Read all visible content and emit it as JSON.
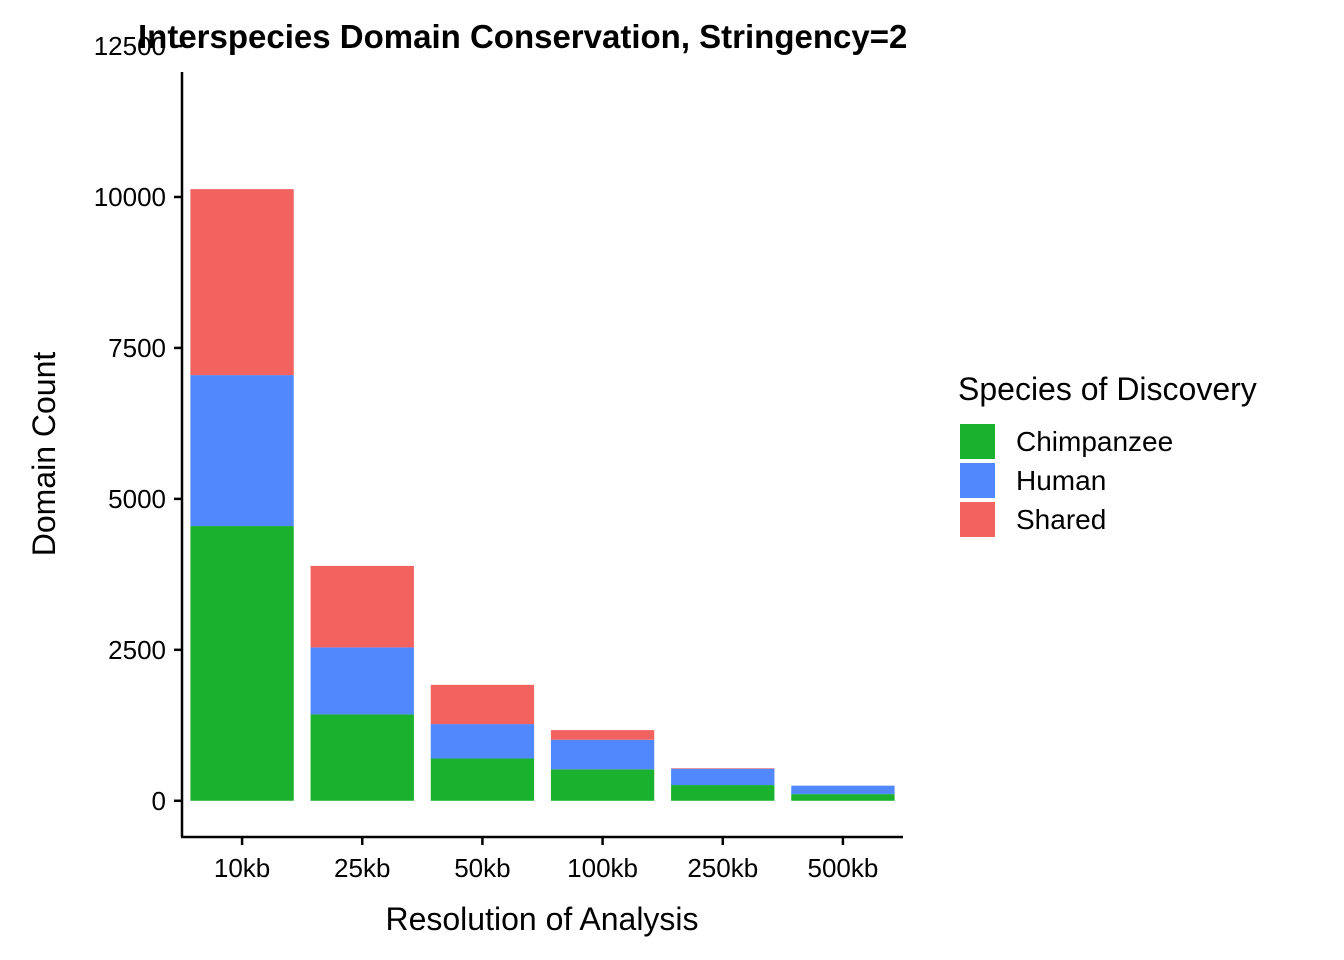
{
  "chart_data": {
    "type": "bar",
    "stacked": true,
    "title": "Interspecies Domain Conservation, Stringency=2",
    "xlabel": "Resolution of Analysis",
    "ylabel": "Domain Count",
    "categories": [
      "10kb",
      "25kb",
      "50kb",
      "100kb",
      "250kb",
      "500kb"
    ],
    "ylim": [
      -600,
      12600
    ],
    "yticks": [
      0,
      2500,
      5000,
      7500,
      10000,
      12500
    ],
    "grid": false,
    "legend": {
      "title": "Species of Discovery",
      "placement": "right"
    },
    "series": [
      {
        "name": "Chimpanzee",
        "color": "#1AB12F",
        "values": [
          4550,
          1430,
          700,
          520,
          260,
          110
        ]
      },
      {
        "name": "Human",
        "color": "#5288FD",
        "values": [
          2500,
          1110,
          570,
          490,
          270,
          140
        ]
      },
      {
        "name": "Shared",
        "color": "#F2625F",
        "values": [
          3080,
          1350,
          650,
          160,
          10,
          0
        ]
      }
    ]
  }
}
